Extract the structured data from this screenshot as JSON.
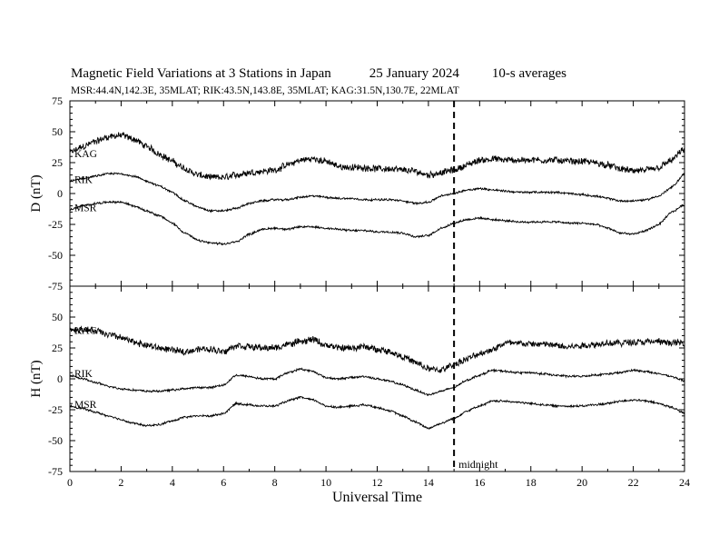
{
  "header": {
    "title": "Magnetic Field Variations at 3 Stations in Japan",
    "date": "25 January 2024",
    "averaging": "10-s averages",
    "stations_line": "MSR:44.4N,142.3E, 35MLAT;  RIK:43.5N,143.8E, 35MLAT;  KAG:31.5N,130.7E, 22MLAT"
  },
  "chart_data": [
    {
      "type": "line",
      "panel": "D",
      "ylabel": "D (nT)",
      "ylim": [
        -75,
        75
      ],
      "yticks": [
        -75,
        -50,
        -25,
        0,
        25,
        50,
        75
      ],
      "xlim": [
        0,
        24
      ],
      "marker": {
        "x": 15,
        "label": "midnight"
      },
      "series": [
        {
          "name": "KAG",
          "noise": 2.6,
          "x": [
            0,
            0.5,
            1,
            1.5,
            2,
            2.5,
            3,
            3.5,
            4,
            4.5,
            5,
            5.5,
            6,
            6.5,
            7,
            7.5,
            8,
            8.5,
            9,
            9.5,
            10,
            10.5,
            11,
            11.5,
            12,
            12.5,
            13,
            13.5,
            14,
            14.5,
            15,
            15.5,
            16,
            16.5,
            17,
            17.5,
            18,
            18.5,
            19,
            19.5,
            20,
            20.5,
            21,
            21.5,
            22,
            22.5,
            23,
            23.5,
            24
          ],
          "y": [
            33,
            38,
            42,
            46,
            47,
            44,
            38,
            32,
            26,
            20,
            15,
            13,
            13,
            15,
            17,
            18,
            19,
            23,
            27,
            28,
            26,
            22,
            21,
            21,
            20,
            20,
            19,
            18,
            15,
            17,
            19,
            23,
            27,
            28,
            27,
            27,
            27,
            27,
            27,
            26,
            26,
            25,
            23,
            20,
            18,
            19,
            21,
            27,
            36
          ]
        },
        {
          "name": "RIK",
          "noise": 0.8,
          "x": [
            0,
            0.5,
            1,
            1.5,
            2,
            2.5,
            3,
            3.5,
            4,
            4.5,
            5,
            5.5,
            6,
            6.5,
            7,
            7.5,
            8,
            8.5,
            9,
            9.5,
            10,
            10.5,
            11,
            11.5,
            12,
            12.5,
            13,
            13.5,
            14,
            14.5,
            15,
            15.5,
            16,
            16.5,
            17,
            17.5,
            18,
            18.5,
            19,
            19.5,
            20,
            20.5,
            21,
            21.5,
            22,
            22.5,
            23,
            23.5,
            24
          ],
          "y": [
            10,
            12,
            14,
            16,
            16,
            14,
            10,
            6,
            1,
            -6,
            -11,
            -14,
            -14,
            -12,
            -8,
            -6,
            -5,
            -5,
            -3,
            -2,
            -3,
            -4,
            -4,
            -5,
            -5,
            -5,
            -6,
            -8,
            -7,
            -2,
            0,
            3,
            4,
            3,
            2,
            1,
            1,
            1,
            1,
            0,
            -1,
            -2,
            -4,
            -6,
            -6,
            -5,
            -2,
            5,
            16
          ]
        },
        {
          "name": "MSR",
          "noise": 0.8,
          "x": [
            0,
            0.5,
            1,
            1.5,
            2,
            2.5,
            3,
            3.5,
            4,
            4.5,
            5,
            5.5,
            6,
            6.5,
            7,
            7.5,
            8,
            8.5,
            9,
            9.5,
            10,
            10.5,
            11,
            11.5,
            12,
            12.5,
            13,
            13.5,
            14,
            14.5,
            15,
            15.5,
            16,
            16.5,
            17,
            17.5,
            18,
            18.5,
            19,
            19.5,
            20,
            20.5,
            21,
            21.5,
            22,
            22.5,
            23,
            23.5,
            24
          ],
          "y": [
            -13,
            -10,
            -8,
            -7,
            -7,
            -10,
            -14,
            -18,
            -24,
            -32,
            -38,
            -40,
            -41,
            -39,
            -33,
            -29,
            -28,
            -29,
            -27,
            -27,
            -28,
            -29,
            -30,
            -30,
            -31,
            -31,
            -32,
            -35,
            -34,
            -28,
            -24,
            -21,
            -20,
            -21,
            -22,
            -23,
            -23,
            -23,
            -23,
            -24,
            -24,
            -25,
            -28,
            -32,
            -33,
            -30,
            -25,
            -15,
            -9
          ]
        }
      ]
    },
    {
      "type": "line",
      "panel": "H",
      "ylabel": "H (nT)",
      "ylim": [
        -75,
        75
      ],
      "yticks": [
        -75,
        -50,
        -25,
        0,
        25,
        50
      ],
      "xlim": [
        0,
        24
      ],
      "xticks": [
        0,
        2,
        4,
        6,
        8,
        10,
        12,
        14,
        16,
        18,
        20,
        22,
        24
      ],
      "xlabel": "Universal Time",
      "marker": {
        "x": 15,
        "label": "midnight"
      },
      "series": [
        {
          "name": "KAG",
          "noise": 2.6,
          "x": [
            0,
            0.5,
            1,
            1.5,
            2,
            2.5,
            3,
            3.5,
            4,
            4.5,
            5,
            5.5,
            6,
            6.5,
            7,
            7.5,
            8,
            8.5,
            9,
            9.5,
            10,
            10.5,
            11,
            11.5,
            12,
            12.5,
            13,
            13.5,
            14,
            14.5,
            15,
            15.5,
            16,
            16.5,
            17,
            17.5,
            18,
            18.5,
            19,
            19.5,
            20,
            20.5,
            21,
            21.5,
            22,
            22.5,
            23,
            23.5,
            24
          ],
          "y": [
            40,
            40,
            39,
            36,
            33,
            30,
            27,
            25,
            23,
            22,
            24,
            24,
            22,
            27,
            26,
            25,
            25,
            28,
            30,
            32,
            27,
            25,
            25,
            26,
            24,
            22,
            18,
            13,
            8,
            7,
            12,
            16,
            20,
            24,
            29,
            29,
            28,
            28,
            27,
            26,
            27,
            28,
            29,
            29,
            30,
            30,
            30,
            29,
            29
          ]
        },
        {
          "name": "RIK",
          "noise": 0.8,
          "x": [
            0,
            0.5,
            1,
            1.5,
            2,
            2.5,
            3,
            3.5,
            4,
            4.5,
            5,
            5.5,
            6,
            6.5,
            7,
            7.5,
            8,
            8.5,
            9,
            9.5,
            10,
            10.5,
            11,
            11.5,
            12,
            12.5,
            13,
            13.5,
            14,
            14.5,
            15,
            15.5,
            16,
            16.5,
            17,
            17.5,
            18,
            18.5,
            19,
            19.5,
            20,
            20.5,
            21,
            21.5,
            22,
            22.5,
            23,
            23.5,
            24
          ],
          "y": [
            3,
            0,
            -3,
            -6,
            -8,
            -9,
            -10,
            -10,
            -9,
            -8,
            -7,
            -7,
            -5,
            3,
            2,
            0,
            0,
            5,
            8,
            6,
            1,
            0,
            1,
            2,
            0,
            -2,
            -5,
            -9,
            -13,
            -10,
            -7,
            -1,
            3,
            7,
            6,
            5,
            5,
            4,
            3,
            2,
            2,
            3,
            4,
            5,
            7,
            6,
            4,
            2,
            -2
          ]
        },
        {
          "name": "MSR",
          "noise": 0.8,
          "x": [
            0,
            0.5,
            1,
            1.5,
            2,
            2.5,
            3,
            3.5,
            4,
            4.5,
            5,
            5.5,
            6,
            6.5,
            7,
            7.5,
            8,
            8.5,
            9,
            9.5,
            10,
            10.5,
            11,
            11.5,
            12,
            12.5,
            13,
            13.5,
            14,
            14.5,
            15,
            15.5,
            16,
            16.5,
            17,
            17.5,
            18,
            18.5,
            19,
            19.5,
            20,
            20.5,
            21,
            21.5,
            22,
            22.5,
            23,
            23.5,
            24
          ],
          "y": [
            -22,
            -24,
            -27,
            -30,
            -33,
            -36,
            -38,
            -37,
            -34,
            -31,
            -30,
            -30,
            -28,
            -20,
            -21,
            -22,
            -22,
            -18,
            -15,
            -17,
            -22,
            -23,
            -22,
            -21,
            -23,
            -26,
            -30,
            -35,
            -40,
            -36,
            -32,
            -26,
            -22,
            -18,
            -18,
            -19,
            -20,
            -21,
            -22,
            -22,
            -22,
            -21,
            -20,
            -18,
            -17,
            -18,
            -20,
            -23,
            -28
          ]
        }
      ]
    }
  ]
}
